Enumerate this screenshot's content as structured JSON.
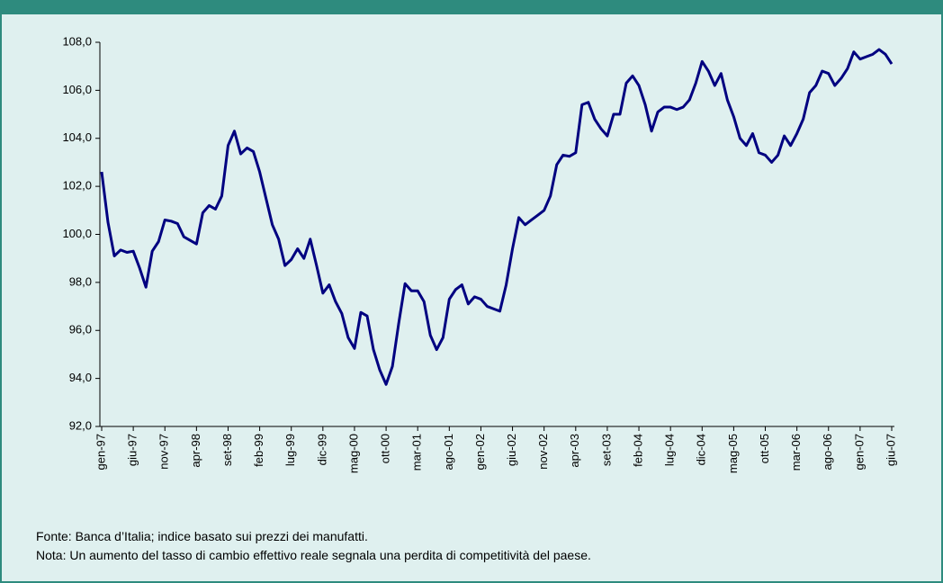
{
  "chart_data": {
    "type": "line",
    "categories": [
      "gen-97",
      null,
      null,
      null,
      null,
      "giu-97",
      null,
      null,
      null,
      null,
      "nov-97",
      null,
      null,
      null,
      null,
      "apr-98",
      null,
      null,
      null,
      null,
      "set-98",
      null,
      null,
      null,
      null,
      "feb-99",
      null,
      null,
      null,
      null,
      "lug-99",
      null,
      null,
      null,
      null,
      "dic-99",
      null,
      null,
      null,
      null,
      "mag-00",
      null,
      null,
      null,
      null,
      "ott-00",
      null,
      null,
      null,
      null,
      "mar-01",
      null,
      null,
      null,
      null,
      "ago-01",
      null,
      null,
      null,
      null,
      "gen-02",
      null,
      null,
      null,
      null,
      "giu-02",
      null,
      null,
      null,
      null,
      "nov-02",
      null,
      null,
      null,
      null,
      "apr-03",
      null,
      null,
      null,
      null,
      "set-03",
      null,
      null,
      null,
      null,
      "feb-04",
      null,
      null,
      null,
      null,
      "lug-04",
      null,
      null,
      null,
      null,
      "dic-04",
      null,
      null,
      null,
      null,
      "mag-05",
      null,
      null,
      null,
      null,
      "ott-05",
      null,
      null,
      null,
      null,
      "mar-06",
      null,
      null,
      null,
      null,
      "ago-06",
      null,
      null,
      null,
      null,
      "gen-07",
      null,
      null,
      null,
      null,
      "giu-07"
    ],
    "values": [
      102.6,
      100.5,
      99.1,
      99.35,
      99.25,
      99.3,
      98.6,
      97.8,
      99.3,
      99.7,
      100.6,
      100.55,
      100.45,
      99.9,
      99.75,
      99.6,
      100.9,
      101.2,
      101.05,
      101.6,
      103.7,
      104.3,
      103.35,
      103.6,
      103.45,
      102.6,
      101.5,
      100.4,
      99.8,
      98.7,
      98.95,
      99.4,
      99.0,
      99.8,
      98.7,
      97.55,
      97.9,
      97.2,
      96.7,
      95.7,
      95.25,
      96.75,
      96.6,
      95.2,
      94.35,
      93.75,
      94.5,
      96.3,
      97.95,
      97.65,
      97.65,
      97.2,
      95.8,
      95.2,
      95.7,
      97.3,
      97.7,
      97.9,
      97.1,
      97.4,
      97.3,
      97.0,
      96.9,
      96.8,
      97.9,
      99.4,
      100.7,
      100.4,
      100.6,
      100.8,
      101.0,
      101.6,
      102.9,
      103.3,
      103.25,
      103.4,
      105.4,
      105.5,
      104.8,
      104.4,
      104.1,
      105.0,
      105.0,
      106.3,
      106.6,
      106.2,
      105.4,
      104.3,
      105.1,
      105.3,
      105.3,
      105.2,
      105.3,
      105.6,
      106.3,
      107.2,
      106.8,
      106.2,
      106.7,
      105.6,
      104.9,
      104.0,
      103.7,
      104.2,
      103.4,
      103.3,
      103.0,
      103.3,
      104.1,
      103.7,
      104.2,
      104.8,
      105.9,
      106.2,
      106.8,
      106.7,
      106.2,
      106.5,
      106.9,
      107.6,
      107.3,
      107.4,
      107.5,
      107.7,
      107.5,
      107.1
    ],
    "color": "#000080",
    "ylim": [
      92,
      108
    ],
    "yticks": [
      {
        "value": 92,
        "label": "92,0"
      },
      {
        "value": 94,
        "label": "94,0"
      },
      {
        "value": 96,
        "label": "96,0"
      },
      {
        "value": 98,
        "label": "98,0"
      },
      {
        "value": 100,
        "label": "100,0"
      },
      {
        "value": 102,
        "label": "102,0"
      },
      {
        "value": 104,
        "label": "104,0"
      },
      {
        "value": 106,
        "label": "106,0"
      },
      {
        "value": 108,
        "label": "108,0"
      }
    ],
    "grid": false,
    "notes": [
      "Fonte: Banca d’Italia; indice basato sui prezzi dei manufatti.",
      "Nota: Un aumento del tasso di cambio effettivo reale segnala una perdita di competitività del paese."
    ]
  }
}
